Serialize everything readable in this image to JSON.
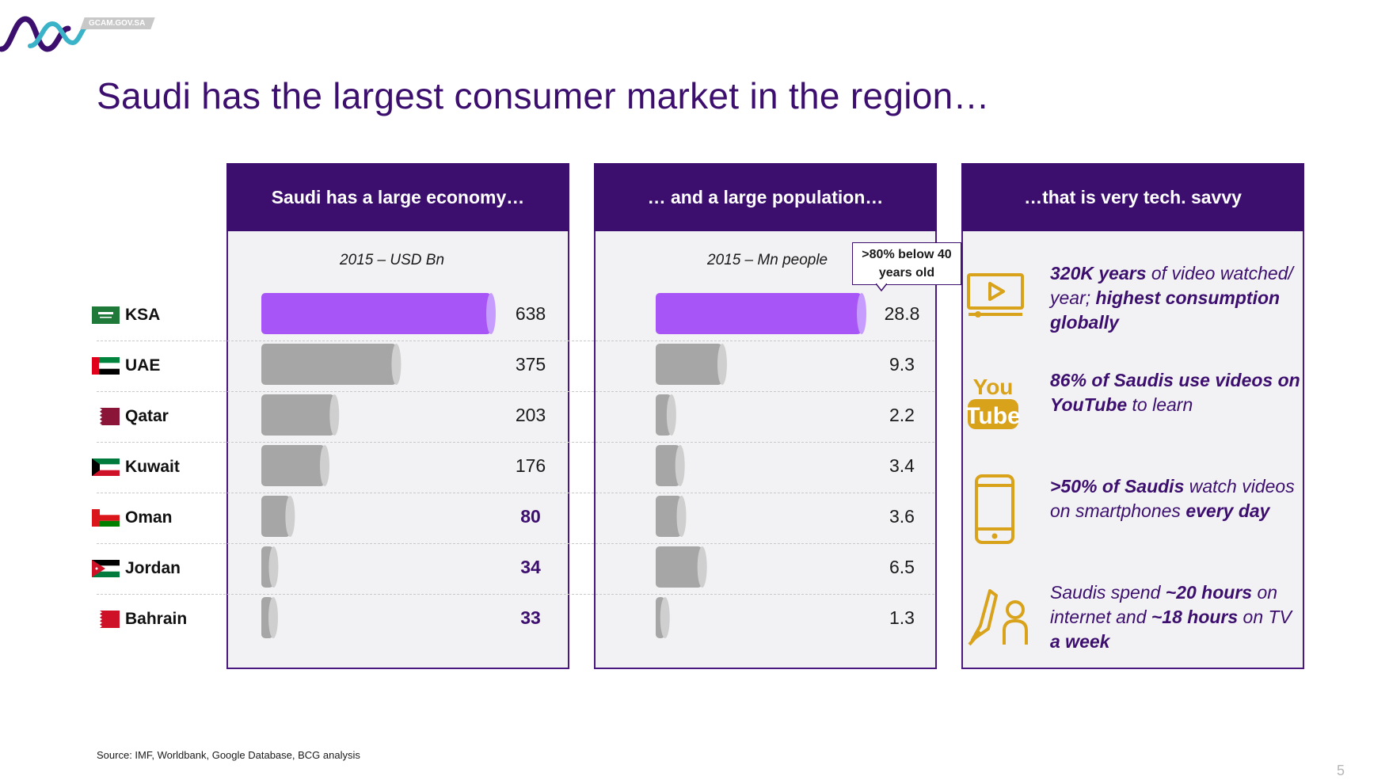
{
  "header": {
    "logo_text": "GCAM.GOV.SA",
    "title": "Saudi has the largest consumer market in the region…"
  },
  "panels": {
    "economy": {
      "heading": "Saudi has a large economy…",
      "unit": "2015 – USD Bn"
    },
    "population": {
      "heading": "… and a large population…",
      "unit": "2015 – Mn people",
      "callout": ">80% below 40 years old"
    },
    "tech": {
      "heading": "…that is very tech. savvy"
    }
  },
  "chart_data": [
    {
      "type": "bar",
      "title": "Saudi has a large economy…",
      "subtitle": "2015 – USD Bn",
      "categories": [
        "KSA",
        "UAE",
        "Qatar",
        "Kuwait",
        "Oman",
        "Jordan",
        "Bahrain"
      ],
      "values": [
        638,
        375,
        203,
        176,
        80,
        34,
        33
      ],
      "highlight": "KSA",
      "colors": {
        "highlight": "#a855f7",
        "other": "#a6a6a6"
      }
    },
    {
      "type": "bar",
      "title": "… and a large population…",
      "subtitle": "2015 – Mn people",
      "categories": [
        "KSA",
        "UAE",
        "Qatar",
        "Kuwait",
        "Oman",
        "Jordan",
        "Bahrain"
      ],
      "values": [
        28.8,
        9.3,
        2.2,
        3.4,
        3.6,
        6.5,
        1.3
      ],
      "value_labels": [
        "28.8",
        "9.3",
        "2.2",
        "3.4",
        "3.6",
        "6.5",
        "1.3"
      ],
      "highlight": "KSA",
      "colors": {
        "highlight": "#a855f7",
        "other": "#a6a6a6"
      }
    }
  ],
  "countries": [
    "KSA",
    "UAE",
    "Qatar",
    "Kuwait",
    "Oman",
    "Jordan",
    "Bahrain"
  ],
  "tech_items": [
    {
      "icon": "video-player-icon",
      "text_html": "<b>320K years</b> of video watched/ year; <b>highest consumption globally</b>"
    },
    {
      "icon": "youtube-icon",
      "icon_text": [
        "You",
        "Tube"
      ],
      "text_html": "<b>86% of Saudis use videos on</b> <b>YouTube</b> to learn"
    },
    {
      "icon": "smartphone-icon",
      "text_html": "<b>&gt;50% of Saudis</b> watch videos on smartphones <b>every day</b>"
    },
    {
      "icon": "pen-and-person-icon",
      "text_html": "Saudis spend <b>~20 hours</b> on internet and <b>~18 hours</b> on TV <b>a week</b>"
    }
  ],
  "footer": {
    "source": "Source: IMF, Worldbank, Google Database, BCG analysis",
    "page_number": "5"
  },
  "theme": {
    "purple": "#3c0f6e",
    "gold": "#d9a21b",
    "highlight": "#a855f7",
    "bar_gray": "#a6a6a6"
  }
}
